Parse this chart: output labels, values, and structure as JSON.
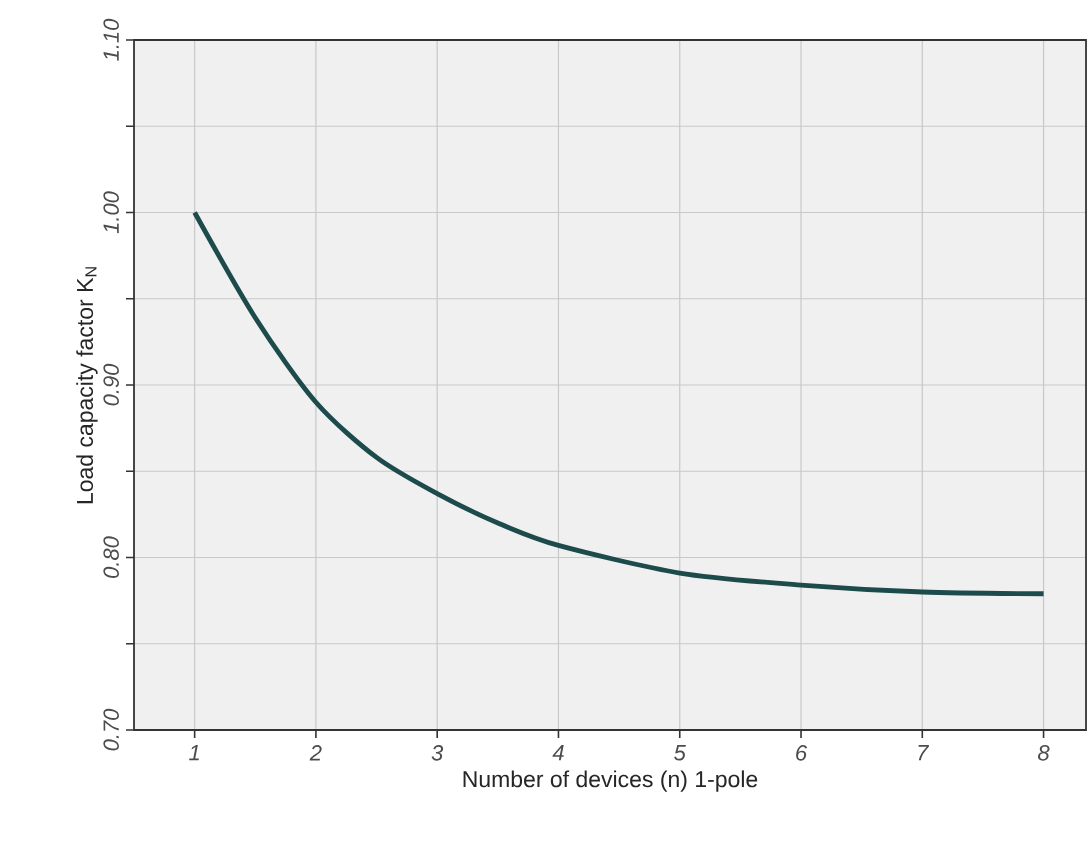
{
  "chart_data": {
    "type": "line",
    "xlabel": "Number of devices (n) 1-pole",
    "ylabel": "Load capacity factor K$_{N}$",
    "x": [
      1,
      1.5,
      2,
      2.5,
      3,
      3.5,
      4,
      5,
      6,
      7,
      8
    ],
    "series": [
      {
        "color": "#1d4a4b",
        "values": [
          1.0,
          0.939,
          0.89,
          0.858,
          0.837,
          0.82,
          0.807,
          0.791,
          0.784,
          0.78,
          0.779
        ]
      }
    ],
    "xlim": [
      0.5,
      8.35
    ],
    "ylim": [
      0.7,
      1.1
    ],
    "xticks": [
      1,
      2,
      3,
      4,
      5,
      6,
      7,
      8
    ],
    "yticks": [
      {
        "value": 0.7,
        "label": "0.70"
      },
      {
        "value": 0.75,
        "label": null
      },
      {
        "value": 0.8,
        "label": "0.80"
      },
      {
        "value": 0.85,
        "label": null
      },
      {
        "value": 0.9,
        "label": "0.90"
      },
      {
        "value": 0.95,
        "label": null
      },
      {
        "value": 1.0,
        "label": "1.00"
      },
      {
        "value": 1.05,
        "label": null
      },
      {
        "value": 1.1,
        "label": "1.10"
      }
    ],
    "grid": true,
    "marker": "none",
    "line_style": "solid"
  }
}
